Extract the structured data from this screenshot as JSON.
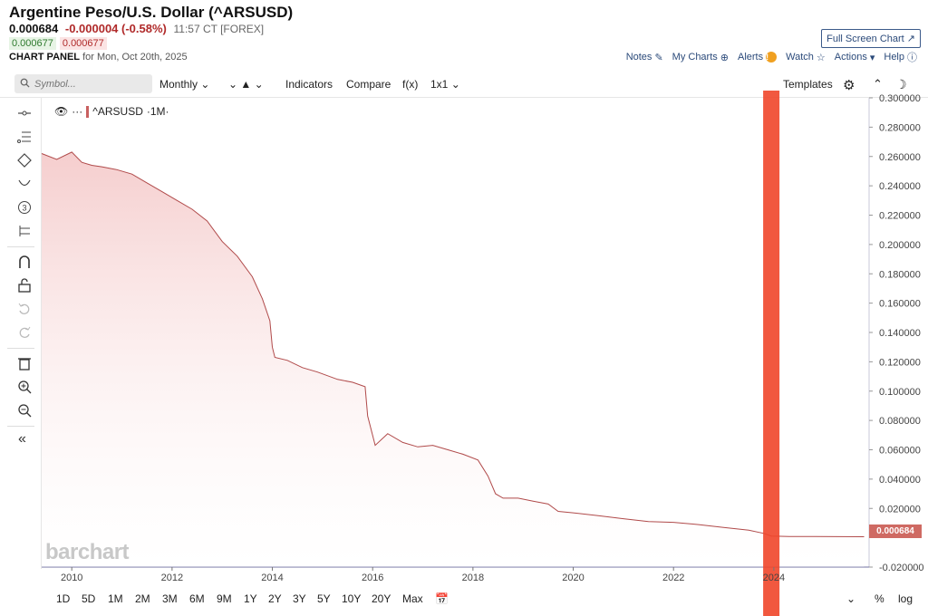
{
  "header": {
    "title": "Argentine Peso/U.S. Dollar (^ARSUSD)",
    "last": "0.000684",
    "change": "-0.000004 (-0.58%)",
    "time": "11:57 CT [FOREX]",
    "bid": "0.000677",
    "ask": "0.000677",
    "panel_label": "CHART PANEL",
    "panel_date": "for Mon, Oct 20th, 2025",
    "fullscreen": "Full Screen Chart",
    "menu": [
      "Notes",
      "My Charts",
      "Alerts",
      "Watch",
      "Actions",
      "Help"
    ]
  },
  "toolbar": {
    "search_placeholder": "Symbol...",
    "interval": "Monthly",
    "indicators": "Indicators",
    "compare": "Compare",
    "fx": "f(x)",
    "layout": "1x1",
    "templates": "Templates"
  },
  "legend": {
    "dots": "···",
    "symbol": "^ARSUSD",
    "interval": "·1M·"
  },
  "watermark": "barchart",
  "last_tag": "0.000684",
  "bottom": {
    "ranges": [
      "1D",
      "5D",
      "1M",
      "2M",
      "3M",
      "6M",
      "9M",
      "1Y",
      "2Y",
      "3Y",
      "5Y",
      "10Y",
      "20Y",
      "Max"
    ],
    "percent": "%",
    "log": "log"
  },
  "colors": {
    "line": "#b04a4a",
    "fill": "#f7d6d6",
    "highlight": "#f0462a",
    "last_tag": "#cf6a63"
  },
  "chart_data": {
    "type": "area",
    "series": [
      {
        "name": "^ARSUSD",
        "x": [
          2009.4,
          2009.7,
          2010.0,
          2010.2,
          2010.4,
          2010.6,
          2010.9,
          2011.2,
          2011.5,
          2011.8,
          2012.1,
          2012.4,
          2012.7,
          2013.0,
          2013.3,
          2013.6,
          2013.8,
          2013.95,
          2014.0,
          2014.05,
          2014.3,
          2014.6,
          2014.9,
          2015.3,
          2015.6,
          2015.85,
          2015.9,
          2016.05,
          2016.3,
          2016.6,
          2016.9,
          2017.2,
          2017.5,
          2017.8,
          2018.1,
          2018.3,
          2018.45,
          2018.6,
          2018.9,
          2019.2,
          2019.5,
          2019.7,
          2020.0,
          2020.5,
          2021.0,
          2021.5,
          2022.0,
          2022.5,
          2023.0,
          2023.5,
          2023.8,
          2023.95,
          2024.3,
          2024.8,
          2025.3,
          2025.8
        ],
        "y": [
          0.262,
          0.258,
          0.263,
          0.256,
          0.254,
          0.253,
          0.251,
          0.248,
          0.242,
          0.236,
          0.23,
          0.224,
          0.216,
          0.202,
          0.192,
          0.178,
          0.163,
          0.148,
          0.13,
          0.123,
          0.121,
          0.116,
          0.113,
          0.108,
          0.106,
          0.103,
          0.083,
          0.063,
          0.071,
          0.065,
          0.062,
          0.063,
          0.06,
          0.057,
          0.053,
          0.042,
          0.03,
          0.027,
          0.027,
          0.025,
          0.023,
          0.018,
          0.017,
          0.015,
          0.013,
          0.011,
          0.0105,
          0.009,
          0.007,
          0.0052,
          0.003,
          0.0012,
          0.0009,
          0.0008,
          0.00075,
          0.000684
        ]
      }
    ],
    "xlim": [
      2009.4,
      2025.9
    ],
    "ylim": [
      -0.02,
      0.3
    ],
    "x_ticks": [
      "2010",
      "2012",
      "2014",
      "2016",
      "2018",
      "2020",
      "2022",
      "2024"
    ],
    "y_ticks": [
      "0.300000",
      "0.280000",
      "0.260000",
      "0.240000",
      "0.220000",
      "0.200000",
      "0.180000",
      "0.160000",
      "0.140000",
      "0.120000",
      "0.100000",
      "0.080000",
      "0.060000",
      "0.040000",
      "0.020000",
      "-0.020000"
    ],
    "highlight_x": 2023.95,
    "grid": false
  }
}
